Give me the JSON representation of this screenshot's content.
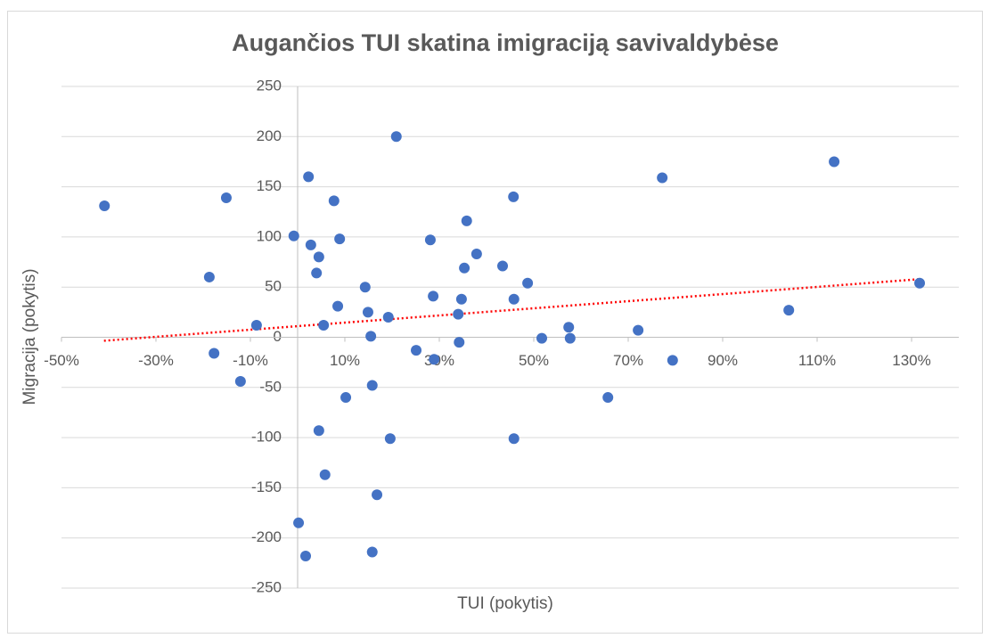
{
  "chart_data": {
    "type": "scatter",
    "title": "Augančios TUI skatina imigraciją savivaldybėse",
    "xlabel": "TUI (pokytis)",
    "ylabel": "Migracija (pokytis)",
    "xlim": [
      -50,
      140
    ],
    "ylim": [
      -250,
      250
    ],
    "xticks": [
      {
        "value": -50,
        "label": "-50%"
      },
      {
        "value": -30,
        "label": "-30%"
      },
      {
        "value": -10,
        "label": "-10%"
      },
      {
        "value": 10,
        "label": "10%"
      },
      {
        "value": 30,
        "label": "30%"
      },
      {
        "value": 50,
        "label": "50%"
      },
      {
        "value": 70,
        "label": "70%"
      },
      {
        "value": 90,
        "label": "90%"
      },
      {
        "value": 110,
        "label": "110%"
      },
      {
        "value": 130,
        "label": "130%"
      }
    ],
    "yticks": [
      -250,
      -200,
      -150,
      -100,
      -50,
      0,
      50,
      100,
      150,
      200,
      250
    ],
    "grid": true,
    "series": [
      {
        "color": "#4472c4",
        "x": [
          -40.9,
          -15.1,
          -18.7,
          -17.7,
          -12.1,
          -8.7,
          -0.8,
          2.3,
          2.8,
          4.5,
          4.0,
          5.5,
          7.7,
          8.9,
          8.5,
          0.2,
          1.7,
          4.5,
          5.8,
          10.2,
          14.3,
          14.9,
          15.5,
          19.2,
          20.9,
          15.8,
          19.6,
          16.8,
          15.8,
          25.1,
          28.9,
          28.1,
          28.7,
          34.0,
          34.7,
          34.2,
          35.3,
          35.8,
          37.9,
          43.4,
          45.7,
          45.8,
          48.7,
          45.8,
          51.7,
          57.4,
          57.7,
          65.7,
          72.1,
          77.2,
          79.4,
          104.0,
          113.6,
          131.7
        ],
        "values": [
          131,
          139,
          60,
          -16,
          -44,
          12,
          101,
          160,
          92,
          80,
          64,
          12,
          136,
          98,
          31,
          -185,
          -218,
          -93,
          -137,
          -60,
          50,
          25,
          1,
          20,
          200,
          -48,
          -101,
          -157,
          -214,
          -13,
          -22,
          97,
          41,
          23,
          38,
          -5,
          69,
          116,
          83,
          71,
          140,
          38,
          54,
          -101,
          -1,
          10,
          -1,
          -60,
          7,
          159,
          -23,
          27,
          175,
          54
        ]
      }
    ],
    "trendline": {
      "color": "#ff0000",
      "x": [
        -41,
        132
      ],
      "values": [
        -3.5,
        58
      ]
    }
  }
}
